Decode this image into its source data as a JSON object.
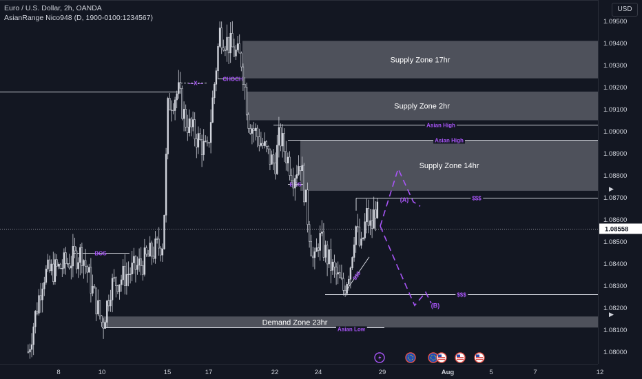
{
  "header": {
    "symbol_line": "Euro / U.S. Dollar, 2h, OANDA",
    "indicator_line": "AsianRange Nico948 (D, 1900-0100:1234567)"
  },
  "currency_button": "USD",
  "chart_data": {
    "type": "candlestick",
    "instrument": "Euro / U.S. Dollar",
    "timeframe": "2h",
    "ylim": [
      1.0794,
      1.0952
    ],
    "yticks": [
      "1.09500",
      "1.09400",
      "1.09300",
      "1.09200",
      "1.09100",
      "1.09000",
      "1.08900",
      "1.08800",
      "1.08700",
      "1.08600",
      "1.08500",
      "1.08400",
      "1.08300",
      "1.08200",
      "1.08100",
      "1.08000"
    ],
    "xticks": [
      "8",
      "10",
      "15",
      "17",
      "22",
      "24",
      "29",
      "Aug",
      "5",
      "7",
      "12"
    ],
    "current_price": "1.08558",
    "price_path": [
      [
        "4",
        1.08
      ],
      [
        "7",
        1.0835
      ],
      [
        "8",
        1.0838
      ],
      [
        "9",
        1.0845
      ],
      [
        "10",
        1.0812
      ],
      [
        "11",
        1.083
      ],
      [
        "13",
        1.084
      ],
      [
        "14",
        1.085
      ],
      [
        "14b",
        1.0885
      ],
      [
        "15",
        1.0912
      ],
      [
        "16",
        1.0918
      ],
      [
        "16b",
        1.0905
      ],
      [
        "17",
        1.089
      ],
      [
        "17b",
        1.0945
      ],
      [
        "18",
        1.094
      ],
      [
        "18b",
        1.0932
      ],
      [
        "19",
        1.0905
      ],
      [
        "20",
        1.0895
      ],
      [
        "21",
        1.0888
      ],
      [
        "22",
        1.0885
      ],
      [
        "22b",
        1.0898
      ],
      [
        "23",
        1.088
      ],
      [
        "23b",
        1.0887
      ],
      [
        "24",
        1.0838
      ],
      [
        "24b",
        1.0852
      ],
      [
        "25",
        1.084
      ],
      [
        "25b",
        1.0828
      ],
      [
        "26",
        1.084
      ],
      [
        "26b",
        1.0858
      ],
      [
        "27",
        1.0845
      ],
      [
        "27b",
        1.0862
      ],
      [
        "28",
        1.0855
      ],
      [
        "28b",
        1.0866
      ],
      [
        "29",
        1.08558
      ]
    ],
    "zones": [
      {
        "label": "Supply Zone 17hr",
        "from": 1.0924,
        "to": 1.0941
      },
      {
        "label": "Supply Zone 2hr",
        "from": 1.0905,
        "to": 1.0918
      },
      {
        "label": "Supply Zone 14hr",
        "from": 1.0873,
        "to": 1.0896
      },
      {
        "label": "Demand Zone 23hr",
        "from": 1.0811,
        "to": 1.0816
      }
    ],
    "levels": [
      {
        "label": "Asian High",
        "price": 1.0903
      },
      {
        "label": "Asian High",
        "price": 1.0896
      },
      {
        "label": "$$$",
        "price": 1.087
      },
      {
        "label": "$$$",
        "price": 1.0826
      },
      {
        "label": "Asian Low",
        "price": 1.0811
      },
      {
        "label": "BOS",
        "price": 1.0845
      },
      {
        "label": "BOS",
        "price": 1.0876
      },
      {
        "label": "---X---",
        "price": 1.0922
      },
      {
        "label": "CHOCH",
        "price": 1.0924
      }
    ],
    "annotations": [
      "(A)",
      "(B)",
      "$$$"
    ],
    "projection": [
      [
        "29",
        1.0857
      ],
      [
        "29b",
        1.0871
      ],
      [
        "30",
        1.0883
      ],
      [
        "30b",
        1.0868
      ],
      [
        "30c",
        1.0866
      ],
      [
        "31",
        1.0838
      ],
      [
        "Aug",
        1.0821
      ],
      [
        "Aug b",
        1.0827
      ],
      [
        "Aug c",
        1.0822
      ]
    ]
  },
  "colors": {
    "background": "#131722",
    "candle": "#d1d4dc",
    "zone": "#c8c8d2",
    "annotation": "#a855f7",
    "line": "#d1d4dc",
    "axis_text": "#d1d4dc",
    "grid": "#1c2030"
  },
  "event_icons": [
    "lightning-icon",
    "eu-flag-icon",
    "eu-flag-icon",
    "us-flag-icon",
    "us-flag-icon",
    "us-flag-icon"
  ]
}
